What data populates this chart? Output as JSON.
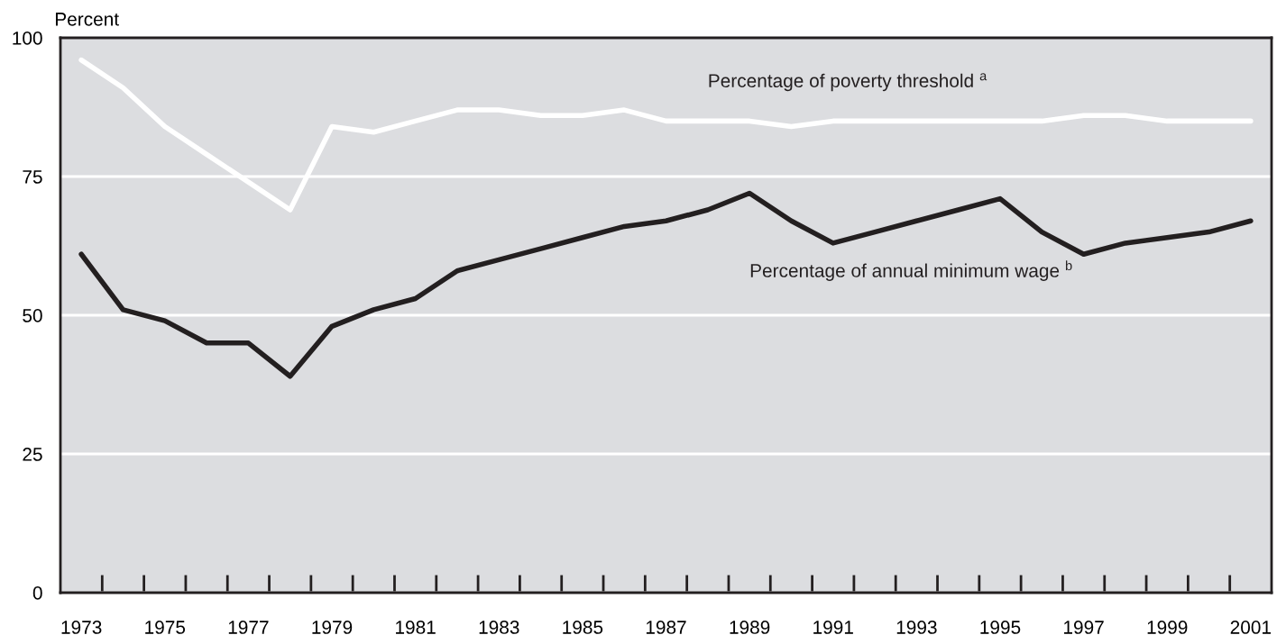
{
  "chart_data": {
    "type": "line",
    "ylabel": "Percent",
    "categories": [
      "1973",
      null,
      "1975",
      null,
      "1977",
      null,
      "1979",
      null,
      "1981",
      null,
      "1983",
      null,
      "1985",
      null,
      "1987",
      null,
      "1989",
      null,
      "1991",
      null,
      "1993",
      null,
      "1995",
      null,
      "1997",
      null,
      "1999",
      null,
      "2001"
    ],
    "series": [
      {
        "name": "Percentage of poverty threshold $^{a}$",
        "color": "#ffffff",
        "values": [
          96,
          91,
          84,
          79,
          74,
          69,
          84,
          83,
          85,
          87,
          87,
          86,
          86,
          87,
          85,
          85,
          85,
          84,
          85,
          85,
          85,
          85,
          85,
          85,
          86,
          86,
          85,
          85,
          85
        ]
      },
      {
        "name": "Percentage of annual minimum wage $^{b}$",
        "color": "#231f20",
        "values": [
          61,
          51,
          49,
          45,
          45,
          39,
          48,
          51,
          53,
          58,
          60,
          62,
          64,
          66,
          67,
          69,
          72,
          67,
          63,
          65,
          67,
          69,
          71,
          65,
          61,
          63,
          64,
          65,
          67
        ]
      }
    ],
    "ylim": [
      0,
      100
    ],
    "yticks": [
      0,
      25,
      50,
      75,
      100
    ],
    "grid": "y",
    "legend": false,
    "line_style": "solid",
    "marker": "none"
  }
}
